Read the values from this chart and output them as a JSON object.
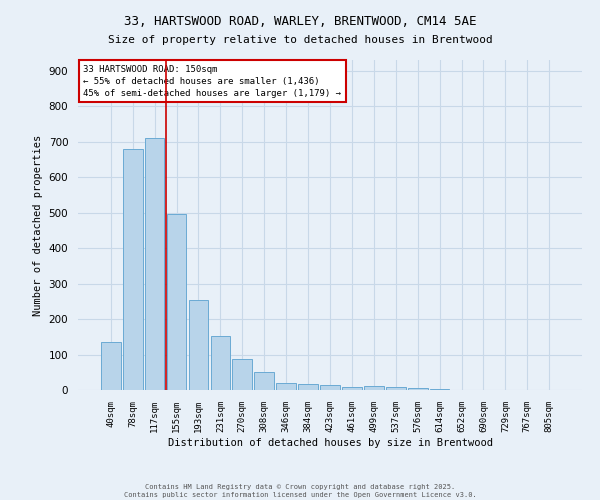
{
  "title_line1": "33, HARTSWOOD ROAD, WARLEY, BRENTWOOD, CM14 5AE",
  "title_line2": "Size of property relative to detached houses in Brentwood",
  "xlabel": "Distribution of detached houses by size in Brentwood",
  "ylabel": "Number of detached properties",
  "categories": [
    "40sqm",
    "78sqm",
    "117sqm",
    "155sqm",
    "193sqm",
    "231sqm",
    "270sqm",
    "308sqm",
    "346sqm",
    "384sqm",
    "423sqm",
    "461sqm",
    "499sqm",
    "537sqm",
    "576sqm",
    "614sqm",
    "652sqm",
    "690sqm",
    "729sqm",
    "767sqm",
    "805sqm"
  ],
  "values": [
    135,
    678,
    710,
    495,
    255,
    152,
    88,
    50,
    20,
    18,
    15,
    8,
    10,
    8,
    5,
    2,
    1,
    1,
    1,
    1,
    1
  ],
  "bar_color": "#b8d4ea",
  "bar_edge_color": "#6aaad4",
  "annotation_text_line1": "33 HARTSWOOD ROAD: 150sqm",
  "annotation_text_line2": "← 55% of detached houses are smaller (1,436)",
  "annotation_text_line3": "45% of semi-detached houses are larger (1,179) →",
  "annotation_box_color": "#ffffff",
  "annotation_box_edge_color": "#cc0000",
  "vline_color": "#cc0000",
  "grid_color": "#c8d8e8",
  "background_color": "#e8f0f8",
  "ylim": [
    0,
    930
  ],
  "yticks": [
    0,
    100,
    200,
    300,
    400,
    500,
    600,
    700,
    800,
    900
  ],
  "vline_x": 2.5,
  "footer_line1": "Contains HM Land Registry data © Crown copyright and database right 2025.",
  "footer_line2": "Contains public sector information licensed under the Open Government Licence v3.0."
}
